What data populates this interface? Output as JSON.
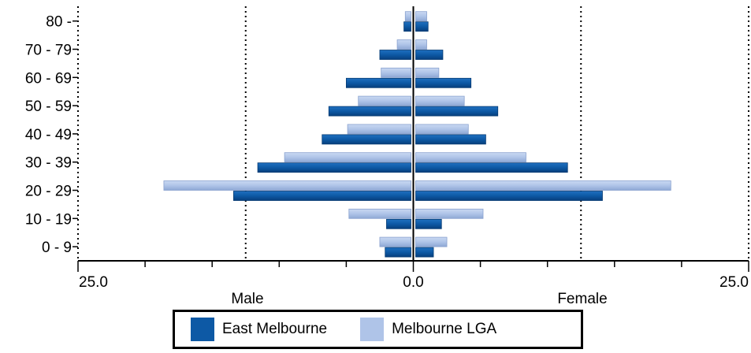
{
  "chart_data": {
    "type": "bar",
    "orientation": "horizontal-population-pyramid",
    "categories": [
      "0 - 9",
      "10 - 19",
      "20 - 29",
      "30 - 39",
      "40 - 49",
      "50 - 59",
      "60 - 69",
      "70 - 79",
      "80 -"
    ],
    "series": [
      {
        "name": "East Melbourne",
        "color": "#0d59a5",
        "male": [
          2.1,
          2.0,
          13.4,
          11.6,
          6.8,
          6.3,
          5.0,
          2.5,
          0.7
        ],
        "female": [
          1.5,
          2.1,
          14.1,
          11.5,
          5.4,
          6.3,
          4.3,
          2.2,
          1.1
        ]
      },
      {
        "name": "Melbourne LGA",
        "color": "#afc4e8",
        "male": [
          2.5,
          4.8,
          18.6,
          9.6,
          4.9,
          4.1,
          2.4,
          1.2,
          0.6
        ],
        "female": [
          2.5,
          5.2,
          19.2,
          8.4,
          4.1,
          3.8,
          1.9,
          1.0,
          1.0
        ]
      }
    ],
    "xlim": [
      -25.0,
      25.0
    ],
    "tick_labels": [
      "25.0",
      "0.0",
      "25.0"
    ],
    "xlabel_left": "Male",
    "xlabel_right": "Female",
    "gridlines": [
      -25.0,
      -12.5,
      12.5,
      25.0
    ],
    "legend_position": "bottom"
  }
}
